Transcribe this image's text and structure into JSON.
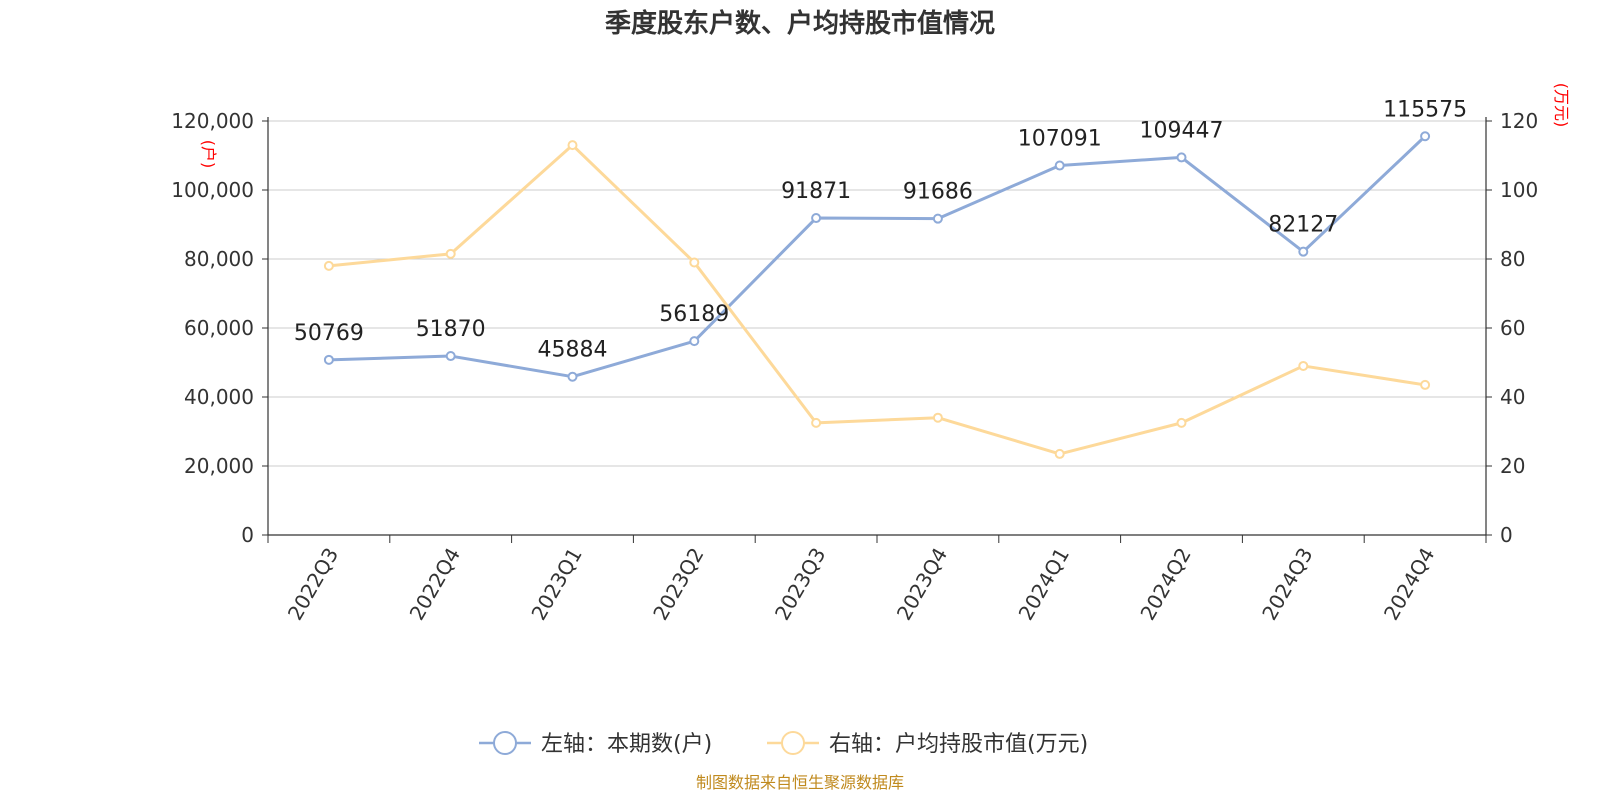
{
  "chart_data": {
    "type": "line",
    "title": "季度股东户数、户均持股市值情况",
    "categories": [
      "2022Q3",
      "2022Q4",
      "2023Q1",
      "2023Q2",
      "2023Q3",
      "2023Q4",
      "2024Q1",
      "2024Q2",
      "2024Q3",
      "2024Q4"
    ],
    "left_axis": {
      "unit": "(户)",
      "range": [
        0,
        120000
      ],
      "ticks": [
        "0",
        "20,000",
        "40,000",
        "60,000",
        "80,000",
        "100,000",
        "120,000"
      ]
    },
    "right_axis": {
      "unit": "(万元)",
      "range": [
        0,
        120
      ],
      "ticks": [
        "0",
        "20",
        "40",
        "60",
        "80",
        "100",
        "120"
      ]
    },
    "grid": true,
    "legend_position": "bottom",
    "series": [
      {
        "name": "左轴：本期数(户)",
        "axis": "left",
        "color": "#8eaad8",
        "values": [
          50769,
          51870,
          45884,
          56189,
          91871,
          91686,
          107091,
          109447,
          82127,
          115575
        ],
        "labels": [
          "50769",
          "51870",
          "45884",
          "56189",
          "91871",
          "91686",
          "107091",
          "109447",
          "82127",
          "115575"
        ]
      },
      {
        "name": "右轴：户均持股市值(万元)",
        "axis": "right",
        "color": "#fdd99a",
        "values": [
          78,
          81.5,
          113,
          79,
          32.5,
          34,
          23.5,
          32.5,
          49,
          43.5
        ]
      }
    ],
    "source": "制图数据来自恒生聚源数据库"
  }
}
